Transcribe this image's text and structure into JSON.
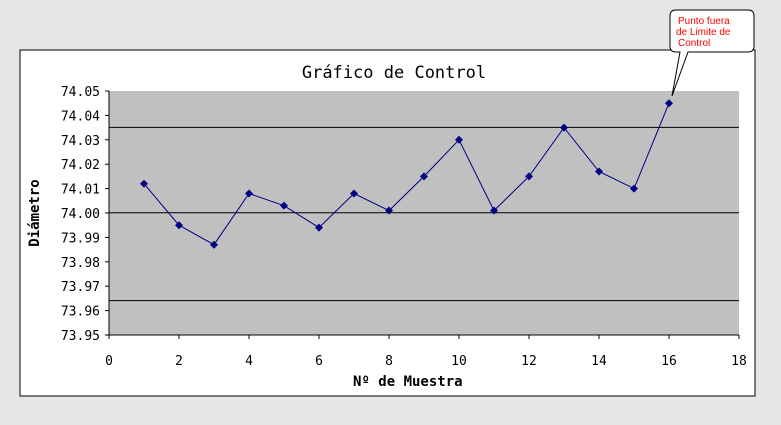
{
  "chart_data": {
    "type": "line",
    "title": "Gráfico de Control",
    "xlabel": "Nº de Muestra",
    "ylabel": "Diámetro",
    "xlim": [
      0,
      18
    ],
    "ylim": [
      73.95,
      74.05
    ],
    "x_ticks": [
      "0",
      "2",
      "4",
      "6",
      "8",
      "10",
      "12",
      "14",
      "16",
      "18"
    ],
    "y_ticks": [
      "74.05",
      "74.04",
      "74.03",
      "74.02",
      "74.01",
      "74.00",
      "73.99",
      "73.98",
      "73.97",
      "73.96",
      "73.95"
    ],
    "x": [
      1,
      2,
      3,
      4,
      5,
      6,
      7,
      8,
      9,
      10,
      11,
      12,
      13,
      14,
      15,
      16
    ],
    "values": [
      74.012,
      73.995,
      73.987,
      74.008,
      74.003,
      73.994,
      74.008,
      74.001,
      74.015,
      74.03,
      74.001,
      74.015,
      74.035,
      74.017,
      74.01,
      74.045
    ],
    "reference_lines": [
      74.0351,
      74.0001,
      73.9641
    ],
    "grid": false,
    "colors": {
      "series": "#000080",
      "plot_background": "#c0c0c0",
      "reference_line": "#000000",
      "callout_text": "#ff0000"
    },
    "annotation": {
      "lines": [
        "Punto fuera",
        "de Limite de",
        "Control"
      ],
      "target_index": 15
    }
  }
}
